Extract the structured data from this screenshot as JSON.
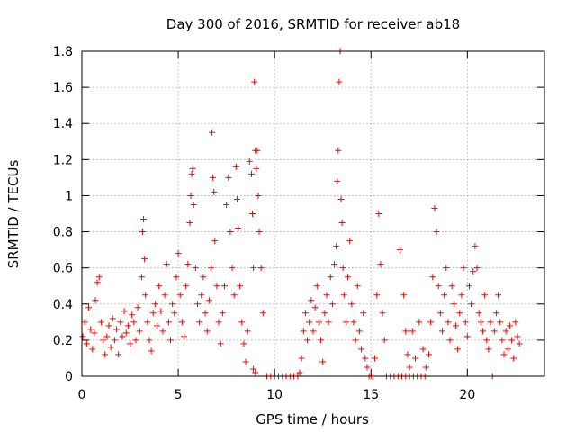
{
  "chart_data": {
    "type": "scatter",
    "title": "Day 300 of 2016, SRMTID for receiver ab18",
    "xlabel": "GPS time / hours",
    "ylabel": "SRMTID / TECUs",
    "xlim": [
      0,
      24
    ],
    "ylim": [
      0,
      1.8
    ],
    "xticks": [
      0,
      5,
      10,
      15,
      20
    ],
    "xtick_labels": [
      "0",
      "5",
      "10",
      "15",
      "20"
    ],
    "yticks": [
      0,
      0.2,
      0.4,
      0.6,
      0.8,
      1.0,
      1.2,
      1.4,
      1.6,
      1.8
    ],
    "ytick_labels": [
      "0",
      "0.2",
      "0.4",
      "0.6",
      "0.8",
      "1",
      "1.2",
      "1.4",
      "1.6",
      "1.8"
    ],
    "grid": true,
    "marker": "+",
    "color": "#ff0000",
    "series": [
      {
        "name": "SRMTID",
        "points": [
          [
            0.05,
            0.22
          ],
          [
            0.15,
            0.3
          ],
          [
            0.25,
            0.18
          ],
          [
            0.35,
            0.38
          ],
          [
            0.45,
            0.26
          ],
          [
            0.55,
            0.15
          ],
          [
            0.65,
            0.24
          ],
          [
            0.7,
            0.42
          ],
          [
            0.8,
            0.52
          ],
          [
            0.9,
            0.55
          ],
          [
            1.0,
            0.3
          ],
          [
            1.1,
            0.2
          ],
          [
            1.2,
            0.12
          ],
          [
            1.3,
            0.22
          ],
          [
            1.4,
            0.28
          ],
          [
            1.5,
            0.16
          ],
          [
            1.6,
            0.32
          ],
          [
            1.7,
            0.2
          ],
          [
            1.8,
            0.26
          ],
          [
            1.9,
            0.12
          ],
          [
            2.0,
            0.3
          ],
          [
            2.1,
            0.22
          ],
          [
            2.2,
            0.36
          ],
          [
            2.3,
            0.24
          ],
          [
            2.4,
            0.28
          ],
          [
            2.5,
            0.18
          ],
          [
            2.6,
            0.34
          ],
          [
            2.7,
            0.3
          ],
          [
            2.8,
            0.2
          ],
          [
            2.9,
            0.38
          ],
          [
            3.0,
            0.25
          ],
          [
            3.1,
            0.55
          ],
          [
            3.15,
            0.8
          ],
          [
            3.2,
            0.87
          ],
          [
            3.25,
            0.65
          ],
          [
            3.3,
            0.45
          ],
          [
            3.4,
            0.3
          ],
          [
            3.5,
            0.2
          ],
          [
            3.6,
            0.14
          ],
          [
            3.7,
            0.35
          ],
          [
            3.8,
            0.4
          ],
          [
            3.9,
            0.28
          ],
          [
            4.0,
            0.5
          ],
          [
            4.1,
            0.36
          ],
          [
            4.2,
            0.25
          ],
          [
            4.3,
            0.45
          ],
          [
            4.4,
            0.62
          ],
          [
            4.5,
            0.3
          ],
          [
            4.6,
            0.2
          ],
          [
            4.7,
            0.4
          ],
          [
            4.8,
            0.35
          ],
          [
            4.9,
            0.55
          ],
          [
            5.0,
            0.68
          ],
          [
            5.1,
            0.45
          ],
          [
            5.2,
            0.3
          ],
          [
            5.3,
            0.22
          ],
          [
            5.4,
            0.5
          ],
          [
            5.5,
            0.62
          ],
          [
            5.6,
            0.85
          ],
          [
            5.65,
            1.0
          ],
          [
            5.7,
            1.12
          ],
          [
            5.75,
            1.15
          ],
          [
            5.8,
            0.95
          ],
          [
            5.9,
            0.6
          ],
          [
            6.0,
            0.4
          ],
          [
            6.1,
            0.3
          ],
          [
            6.2,
            0.45
          ],
          [
            6.3,
            0.55
          ],
          [
            6.4,
            0.35
          ],
          [
            6.5,
            0.25
          ],
          [
            6.6,
            0.42
          ],
          [
            6.7,
            0.6
          ],
          [
            6.75,
            1.35
          ],
          [
            6.8,
            1.1
          ],
          [
            6.85,
            1.02
          ],
          [
            6.9,
            0.75
          ],
          [
            7.0,
            0.5
          ],
          [
            7.1,
            0.3
          ],
          [
            7.2,
            0.18
          ],
          [
            7.3,
            0.35
          ],
          [
            7.4,
            0.5
          ],
          [
            7.5,
            0.95
          ],
          [
            7.6,
            1.1
          ],
          [
            7.7,
            0.8
          ],
          [
            7.8,
            0.6
          ],
          [
            7.9,
            0.45
          ],
          [
            8.0,
            1.16
          ],
          [
            8.05,
            0.98
          ],
          [
            8.1,
            0.82
          ],
          [
            8.2,
            0.5
          ],
          [
            8.3,
            0.3
          ],
          [
            8.4,
            0.18
          ],
          [
            8.5,
            0.08
          ],
          [
            8.6,
            0.25
          ],
          [
            8.7,
            1.19
          ],
          [
            8.8,
            1.12
          ],
          [
            8.85,
            0.9
          ],
          [
            8.9,
            0.6
          ],
          [
            8.95,
            1.63
          ],
          [
            9.0,
            1.25
          ],
          [
            9.05,
            1.15
          ],
          [
            9.1,
            1.25
          ],
          [
            9.15,
            1.0
          ],
          [
            9.2,
            0.8
          ],
          [
            9.3,
            0.6
          ],
          [
            9.4,
            0.35
          ],
          [
            9.0,
            0.02
          ],
          [
            8.9,
            0.04
          ],
          [
            9.6,
            0.0
          ],
          [
            9.8,
            0.0
          ],
          [
            10.0,
            0.0
          ],
          [
            10.2,
            0.0
          ],
          [
            10.4,
            0.0
          ],
          [
            10.6,
            0.0
          ],
          [
            10.8,
            0.0
          ],
          [
            11.0,
            0.0
          ],
          [
            11.2,
            0.0
          ],
          [
            11.3,
            0.02
          ],
          [
            11.4,
            0.1
          ],
          [
            11.5,
            0.25
          ],
          [
            11.6,
            0.35
          ],
          [
            11.7,
            0.2
          ],
          [
            11.8,
            0.3
          ],
          [
            11.9,
            0.42
          ],
          [
            12.0,
            0.25
          ],
          [
            12.1,
            0.38
          ],
          [
            12.2,
            0.5
          ],
          [
            12.3,
            0.3
          ],
          [
            12.4,
            0.2
          ],
          [
            12.5,
            0.08
          ],
          [
            12.6,
            0.35
          ],
          [
            12.7,
            0.45
          ],
          [
            12.8,
            0.3
          ],
          [
            12.9,
            0.55
          ],
          [
            13.0,
            0.4
          ],
          [
            13.1,
            0.62
          ],
          [
            13.2,
            0.72
          ],
          [
            13.25,
            1.08
          ],
          [
            13.3,
            1.25
          ],
          [
            13.35,
            1.63
          ],
          [
            13.4,
            1.8
          ],
          [
            13.45,
            0.98
          ],
          [
            13.5,
            0.85
          ],
          [
            13.55,
            0.6
          ],
          [
            13.6,
            0.45
          ],
          [
            13.7,
            0.3
          ],
          [
            13.8,
            0.55
          ],
          [
            13.9,
            0.75
          ],
          [
            14.0,
            0.4
          ],
          [
            14.1,
            0.3
          ],
          [
            14.2,
            0.2
          ],
          [
            14.3,
            0.5
          ],
          [
            14.4,
            0.25
          ],
          [
            14.5,
            0.15
          ],
          [
            14.6,
            0.35
          ],
          [
            14.7,
            0.1
          ],
          [
            14.8,
            0.05
          ],
          [
            14.9,
            0.0
          ],
          [
            15.0,
            0.0
          ],
          [
            15.1,
            0.0
          ],
          [
            15.2,
            0.1
          ],
          [
            15.3,
            0.45
          ],
          [
            15.4,
            0.9
          ],
          [
            15.5,
            0.62
          ],
          [
            15.6,
            0.35
          ],
          [
            15.7,
            0.2
          ],
          [
            15.8,
            0.0
          ],
          [
            16.0,
            0.0
          ],
          [
            16.2,
            0.0
          ],
          [
            16.4,
            0.0
          ],
          [
            16.6,
            0.0
          ],
          [
            16.8,
            0.0
          ],
          [
            17.0,
            0.0
          ],
          [
            17.2,
            0.0
          ],
          [
            17.4,
            0.0
          ],
          [
            17.6,
            0.0
          ],
          [
            17.8,
            0.0
          ],
          [
            16.5,
            0.7
          ],
          [
            16.7,
            0.45
          ],
          [
            16.8,
            0.25
          ],
          [
            16.9,
            0.12
          ],
          [
            17.0,
            0.05
          ],
          [
            17.15,
            0.25
          ],
          [
            17.3,
            0.1
          ],
          [
            17.5,
            0.3
          ],
          [
            17.7,
            0.15
          ],
          [
            17.85,
            0.05
          ],
          [
            18.0,
            0.12
          ],
          [
            18.1,
            0.3
          ],
          [
            18.2,
            0.55
          ],
          [
            18.3,
            0.93
          ],
          [
            18.4,
            0.8
          ],
          [
            18.5,
            0.5
          ],
          [
            18.6,
            0.35
          ],
          [
            18.7,
            0.25
          ],
          [
            18.8,
            0.45
          ],
          [
            18.9,
            0.6
          ],
          [
            19.0,
            0.3
          ],
          [
            19.1,
            0.2
          ],
          [
            19.2,
            0.5
          ],
          [
            19.3,
            0.4
          ],
          [
            19.4,
            0.28
          ],
          [
            19.5,
            0.15
          ],
          [
            19.6,
            0.35
          ],
          [
            19.7,
            0.45
          ],
          [
            19.8,
            0.6
          ],
          [
            19.9,
            0.3
          ],
          [
            20.0,
            0.22
          ],
          [
            20.1,
            0.5
          ],
          [
            20.2,
            0.4
          ],
          [
            20.3,
            0.58
          ],
          [
            20.4,
            0.72
          ],
          [
            20.5,
            0.6
          ],
          [
            20.6,
            0.35
          ],
          [
            20.7,
            0.3
          ],
          [
            20.8,
            0.25
          ],
          [
            20.9,
            0.45
          ],
          [
            21.0,
            0.2
          ],
          [
            21.1,
            0.15
          ],
          [
            21.2,
            0.3
          ],
          [
            21.3,
            0.0
          ],
          [
            21.4,
            0.25
          ],
          [
            21.5,
            0.35
          ],
          [
            21.6,
            0.45
          ],
          [
            21.7,
            0.3
          ],
          [
            21.8,
            0.2
          ],
          [
            21.9,
            0.12
          ],
          [
            22.0,
            0.25
          ],
          [
            22.1,
            0.15
          ],
          [
            22.2,
            0.28
          ],
          [
            22.3,
            0.2
          ],
          [
            22.4,
            0.1
          ],
          [
            22.5,
            0.3
          ],
          [
            22.6,
            0.22
          ],
          [
            22.7,
            0.18
          ]
        ]
      }
    ]
  }
}
